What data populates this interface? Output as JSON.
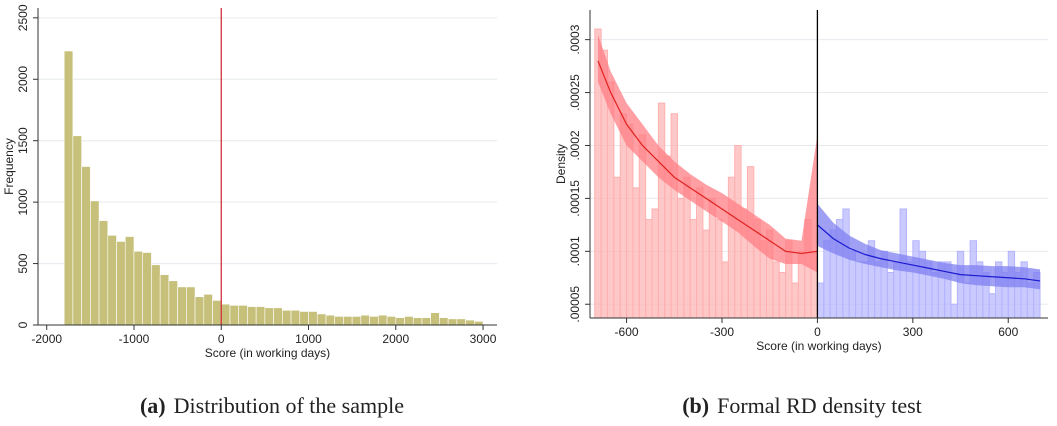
{
  "chart_data": [
    {
      "type": "histogram",
      "xlabel": "Score (in working days)",
      "ylabel": "Frequency",
      "caption": {
        "label": "(a)",
        "text": "Distribution of the sample"
      },
      "xlim": [
        -2100,
        3160
      ],
      "ylim": [
        0,
        2580
      ],
      "xticks": [
        -2000,
        -1000,
        0,
        1000,
        2000,
        3000
      ],
      "yticks": [
        0,
        500,
        1000,
        1500,
        2000,
        2500
      ],
      "grid": true,
      "vline": 0,
      "vline_color": "#d0303c",
      "series": [
        {
          "color": "#c7c07a",
          "bins": [
            -1800,
            -1700,
            -1600,
            -1500,
            -1400,
            -1300,
            -1200,
            -1100,
            -1000,
            -900,
            -800,
            -700,
            -600,
            -500,
            -400,
            -300,
            -200,
            -100,
            0,
            100,
            200,
            300,
            400,
            500,
            600,
            700,
            800,
            900,
            1000,
            1100,
            1200,
            1300,
            1400,
            1500,
            1600,
            1700,
            1800,
            1900,
            2000,
            2100,
            2200,
            2300,
            2400,
            2500,
            2600,
            2700,
            2800,
            2900,
            3000
          ],
          "values": [
            2230,
            1540,
            1290,
            1010,
            850,
            730,
            680,
            720,
            600,
            590,
            490,
            410,
            360,
            310,
            310,
            230,
            250,
            200,
            170,
            160,
            160,
            150,
            150,
            140,
            140,
            120,
            120,
            110,
            110,
            90,
            80,
            70,
            70,
            70,
            80,
            70,
            80,
            70,
            60,
            70,
            60,
            60,
            100,
            60,
            50,
            50,
            40,
            30
          ]
        }
      ]
    },
    {
      "type": "histogram",
      "xlabel": "Score (in working days)",
      "ylabel": "Density",
      "caption": {
        "label": "(b)",
        "text": "Formal RD density test"
      },
      "xlim": [
        -715,
        725
      ],
      "ylim": [
        3.7e-05,
        0.000328
      ],
      "xticks": [
        -600,
        -300,
        0,
        300,
        600
      ],
      "yticks": [
        {
          "value": 5e-05,
          "label": ".00005"
        },
        {
          "value": 0.0001,
          "label": ".0001"
        },
        {
          "value": 0.00015,
          "label": ".00015"
        },
        {
          "value": 0.0002,
          "label": ".0002"
        },
        {
          "value": 0.00025,
          "label": ".00025"
        },
        {
          "value": 0.0003,
          "label": ".0003"
        }
      ],
      "grid": true,
      "vline": 0,
      "vline_color": "#000000",
      "series": [
        {
          "color": "#ffb0b0",
          "bins": [
            -700,
            -680,
            -660,
            -640,
            -620,
            -600,
            -580,
            -560,
            -540,
            -520,
            -500,
            -480,
            -460,
            -440,
            -420,
            -400,
            -380,
            -360,
            -340,
            -320,
            -300,
            -280,
            -260,
            -240,
            -220,
            -200,
            -180,
            -160,
            -140,
            -120,
            -100,
            -80,
            -60,
            -40,
            -20,
            0
          ],
          "values": [
            0.00031,
            0.00029,
            0.00026,
            0.00017,
            0.00023,
            0.00022,
            0.00016,
            0.00021,
            0.00013,
            0.00014,
            0.00024,
            0.00019,
            0.00023,
            0.00015,
            0.00017,
            0.00013,
            0.00016,
            0.00012,
            0.00015,
            0.00013,
            9e-05,
            0.00017,
            0.0002,
            0.00014,
            0.00018,
            0.00013,
            0.00011,
            0.00012,
            9e-05,
            8e-05,
            0.00011,
            7e-05,
            0.0001,
            0.00013,
            0.0001
          ]
        },
        {
          "color": "#b4b4ff",
          "bins": [
            0,
            20,
            40,
            60,
            80,
            100,
            120,
            140,
            160,
            180,
            200,
            220,
            240,
            260,
            280,
            300,
            320,
            340,
            360,
            380,
            400,
            420,
            440,
            460,
            480,
            500,
            520,
            540,
            560,
            580,
            600,
            620,
            640,
            660,
            680,
            700
          ],
          "values": [
            7e-05,
            0.00011,
            0.00012,
            0.00013,
            0.00014,
            0.0001,
            9e-05,
            9e-05,
            0.00011,
            9e-05,
            0.0001,
            8e-05,
            9e-05,
            0.00014,
            9e-05,
            0.00011,
            0.0001,
            9e-05,
            8e-05,
            9e-05,
            9e-05,
            5e-05,
            0.0001,
            7e-05,
            0.00011,
            9e-05,
            8e-05,
            6e-05,
            9e-05,
            8e-05,
            0.0001,
            8e-05,
            9e-05,
            7e-05,
            8e-05
          ]
        }
      ],
      "fits": [
        {
          "color": "#e0201c",
          "band_color": "#ff7f86",
          "x": [
            -690,
            -650,
            -600,
            -550,
            -500,
            -450,
            -400,
            -350,
            -300,
            -250,
            -200,
            -150,
            -100,
            -50,
            0
          ],
          "values": [
            0.00028,
            0.00025,
            0.00022,
            0.0002,
            0.000185,
            0.00017,
            0.00016,
            0.00015,
            0.00014,
            0.00013,
            0.00012,
            0.00011,
            0.0001,
            9.8e-05,
            0.0001
          ],
          "lower": [
            0.00026,
            0.00023,
            0.0002,
            0.000185,
            0.00017,
            0.000158,
            0.000148,
            0.000138,
            0.000128,
            0.000118,
            0.000105,
            9.3e-05,
            8.8e-05,
            8.8e-05,
            8e-05
          ],
          "upper": [
            0.000305,
            0.00027,
            0.00024,
            0.00022,
            0.0002,
            0.000185,
            0.000173,
            0.000163,
            0.000155,
            0.000145,
            0.000135,
            0.000125,
            0.000112,
            0.00011,
            0.00021
          ]
        },
        {
          "color": "#1a1ad0",
          "band_color": "#7f7ff0",
          "x": [
            0,
            50,
            100,
            150,
            200,
            250,
            300,
            350,
            400,
            450,
            500,
            550,
            600,
            650,
            700
          ],
          "values": [
            0.000125,
            0.000112,
            0.000103,
            9.7e-05,
            9.3e-05,
            9e-05,
            8.7e-05,
            8.4e-05,
            8.1e-05,
            7.8e-05,
            7.7e-05,
            7.6e-05,
            7.5e-05,
            7.4e-05,
            7.2e-05
          ],
          "lower": [
            0.000105,
            9.8e-05,
            9.2e-05,
            8.8e-05,
            8.5e-05,
            8.2e-05,
            8e-05,
            7.7e-05,
            7.4e-05,
            7e-05,
            6.8e-05,
            6.7e-05,
            6.6e-05,
            6.6e-05,
            6.4e-05
          ],
          "upper": [
            0.000145,
            0.000127,
            0.000115,
            0.000107,
            0.000101,
            9.8e-05,
            9.5e-05,
            9.2e-05,
            8.9e-05,
            8.7e-05,
            8.7e-05,
            8.6e-05,
            8.6e-05,
            8.5e-05,
            8.3e-05
          ]
        }
      ]
    }
  ]
}
